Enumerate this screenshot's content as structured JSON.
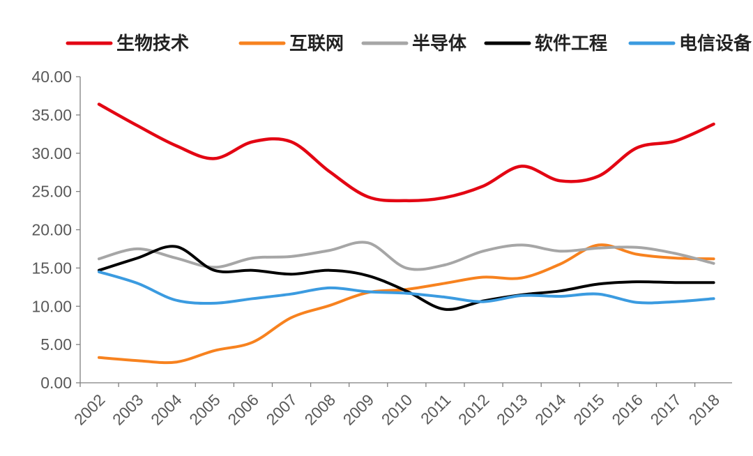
{
  "chart_data": {
    "type": "line",
    "title": "",
    "xlabel": "",
    "ylabel": "",
    "categories": [
      "2002",
      "2003",
      "2004",
      "2005",
      "2006",
      "2007",
      "2008",
      "2009",
      "2010",
      "2011",
      "2012",
      "2013",
      "2014",
      "2015",
      "2016",
      "2017",
      "2018"
    ],
    "ylim": [
      0,
      40
    ],
    "y_ticks": [
      "0.00",
      "5.00",
      "10.00",
      "15.00",
      "20.00",
      "25.00",
      "30.00",
      "35.00",
      "40.00"
    ],
    "grid": false,
    "legend_position": "top",
    "series": [
      {
        "name": "生物技术",
        "color": "#e30613",
        "values": [
          36.4,
          33.6,
          31.0,
          29.3,
          31.5,
          31.5,
          27.6,
          24.3,
          23.8,
          24.2,
          25.7,
          28.3,
          26.4,
          27.0,
          30.7,
          31.6,
          33.8
        ]
      },
      {
        "name": "互联网",
        "color": "#f7821f",
        "values": [
          3.3,
          2.9,
          2.7,
          4.2,
          5.3,
          8.5,
          10.1,
          11.8,
          12.2,
          13.0,
          13.8,
          13.7,
          15.5,
          18.0,
          16.8,
          16.3,
          16.2
        ]
      },
      {
        "name": "半导体",
        "color": "#a6a6a6",
        "values": [
          16.2,
          17.5,
          16.3,
          15.1,
          16.3,
          16.5,
          17.3,
          18.3,
          15.0,
          15.4,
          17.2,
          18.0,
          17.2,
          17.6,
          17.7,
          16.9,
          15.6
        ]
      },
      {
        "name": "软件工程",
        "color": "#000000",
        "values": [
          14.7,
          16.3,
          17.8,
          14.7,
          14.7,
          14.2,
          14.7,
          14.0,
          12.0,
          9.6,
          10.7,
          11.5,
          12.0,
          12.9,
          13.2,
          13.1,
          13.1
        ]
      },
      {
        "name": "电信设备",
        "color": "#3b9be0",
        "values": [
          14.5,
          13.0,
          10.8,
          10.4,
          11.0,
          11.6,
          12.4,
          11.9,
          11.7,
          11.2,
          10.6,
          11.4,
          11.3,
          11.6,
          10.5,
          10.6,
          11.0
        ]
      }
    ]
  }
}
